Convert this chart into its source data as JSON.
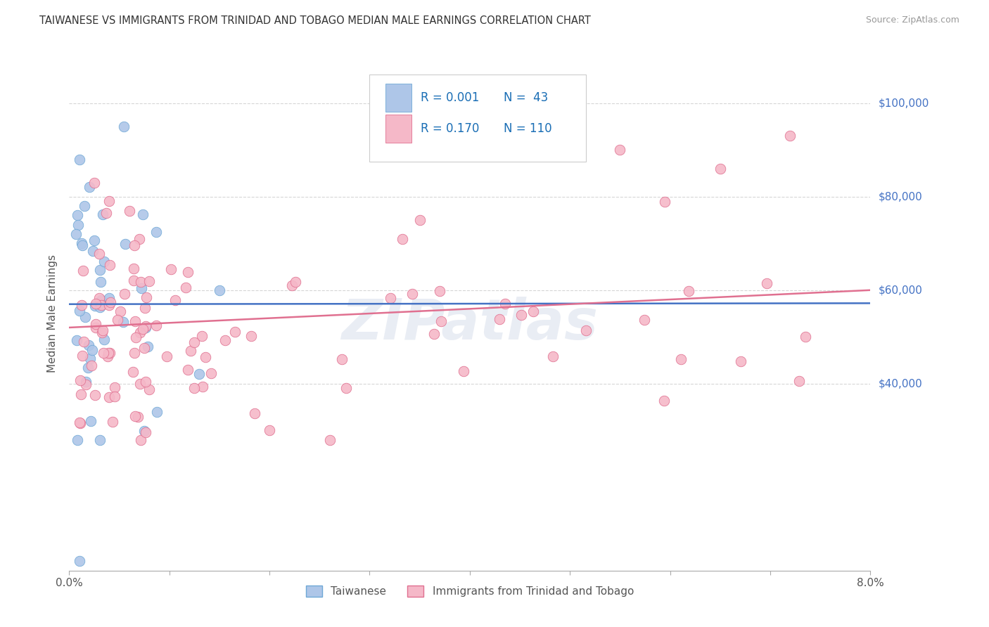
{
  "title": "TAIWANESE VS IMMIGRANTS FROM TRINIDAD AND TOBAGO MEDIAN MALE EARNINGS CORRELATION CHART",
  "source": "Source: ZipAtlas.com",
  "ylabel": "Median Male Earnings",
  "xlim": [
    0.0,
    0.08
  ],
  "ylim": [
    0,
    110000
  ],
  "xtick_positions": [
    0.0,
    0.01,
    0.02,
    0.03,
    0.04,
    0.05,
    0.06,
    0.07,
    0.08
  ],
  "xtick_labels": [
    "0.0%",
    "",
    "",
    "",
    "",
    "",
    "",
    "",
    "8.0%"
  ],
  "ytick_positions": [
    40000,
    60000,
    80000,
    100000
  ],
  "ytick_labels": [
    "$40,000",
    "$60,000",
    "$80,000",
    "$100,000"
  ],
  "background_color": "#ffffff",
  "grid_color": "#cccccc",
  "series1_color": "#aec6e8",
  "series1_edge_color": "#6fa8d6",
  "series2_color": "#f5b8c8",
  "series2_edge_color": "#e07090",
  "line1_color": "#4472c4",
  "line2_color": "#e07090",
  "right_label_color": "#4472c4",
  "legend_R1": "R = 0.001",
  "legend_N1": "N =  43",
  "legend_R2": "R = 0.170",
  "legend_N2": "N = 110",
  "legend_text_color": "#1a6eb5",
  "series1_label": "Taiwanese",
  "series2_label": "Immigrants from Trinidad and Tobago",
  "watermark": "ZIPatlas",
  "title_color": "#333333",
  "source_color": "#999999",
  "ylabel_color": "#555555",
  "tick_color": "#555555"
}
